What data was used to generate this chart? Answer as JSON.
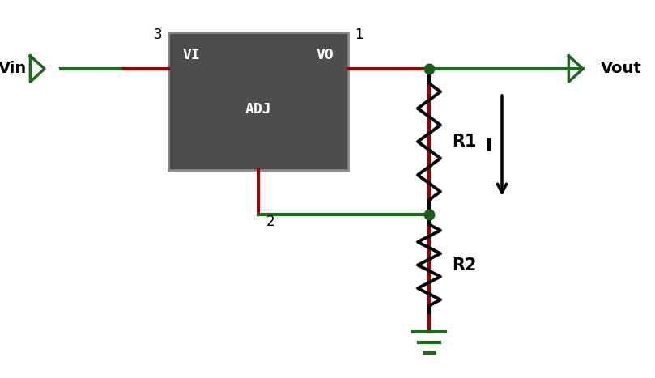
{
  "bg_color": "#ffffff",
  "dark_green": "#1a6b1a",
  "red": "#990000",
  "black": "#000000",
  "box_color": "#4d4d4d",
  "box_edge": "#888888",
  "dot_color": "#1a5c1a",
  "figsize": [
    8.09,
    4.67
  ],
  "dpi": 100,
  "vi_label": "VI",
  "vo_label": "VO",
  "adj_label": "ADJ",
  "pin1_label": "1",
  "pin2_label": "2",
  "pin3_label": "3",
  "vin_label": "Vin",
  "vout_label": "Vout",
  "r1_label": "R1",
  "r2_label": "R2",
  "i_label": "I"
}
